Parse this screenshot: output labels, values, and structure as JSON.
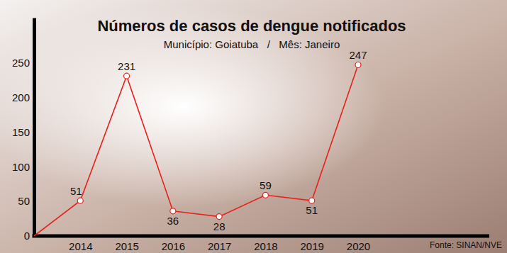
{
  "chart_data": {
    "type": "line",
    "title": "Números de casos de dengue notificados",
    "subtitle": "Município: Goiatuba   /   Mês: Janeiro",
    "annotations": [
      "Fonte: SINAN/NVE"
    ],
    "categories": [
      null,
      "2014",
      "2015",
      "2016",
      "2017",
      "2018",
      "2019",
      "2020"
    ],
    "values": [
      0,
      51,
      231,
      36,
      28,
      59,
      51,
      247
    ],
    "value_labels": [
      null,
      "51",
      "231",
      "36",
      "28",
      "59",
      "51",
      "247"
    ],
    "color": "#e8221b",
    "marker": "circle",
    "ylim": [
      0,
      315
    ],
    "yticks": [
      0,
      50,
      100,
      150,
      200,
      250
    ],
    "grid": false,
    "data_labels": true
  }
}
